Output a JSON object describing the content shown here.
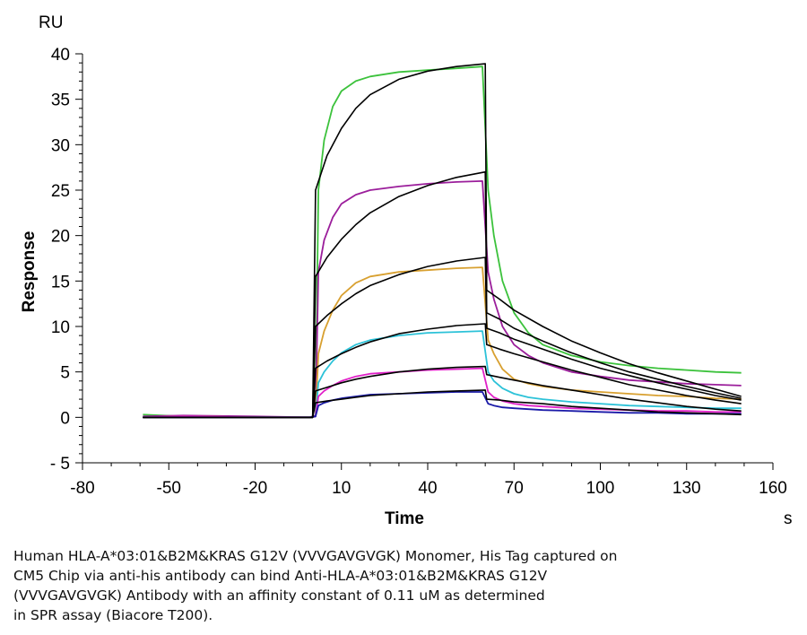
{
  "chart_data": {
    "type": "line",
    "y_unit": "RU",
    "x_unit": "s",
    "xlabel": "Time",
    "ylabel": "Response",
    "xlim": [
      -80,
      160
    ],
    "ylim": [
      -5,
      40
    ],
    "x_ticks": [
      -80,
      -50,
      -20,
      10,
      40,
      70,
      100,
      130,
      160
    ],
    "y_ticks": [
      -5,
      0,
      5,
      10,
      15,
      20,
      25,
      30,
      35,
      40
    ],
    "grid": false,
    "series": [
      {
        "color": "#3cc23c",
        "points": [
          [
            -59,
            0.3
          ],
          [
            -45,
            0.1
          ],
          [
            -20,
            0.0
          ],
          [
            -1,
            0.0
          ],
          [
            1,
            0.2
          ],
          [
            2,
            25.0
          ],
          [
            4,
            30.5
          ],
          [
            7,
            34.2
          ],
          [
            10,
            35.9
          ],
          [
            15,
            37.0
          ],
          [
            20,
            37.5
          ],
          [
            30,
            38.0
          ],
          [
            40,
            38.2
          ],
          [
            50,
            38.4
          ],
          [
            59,
            38.6
          ],
          [
            61,
            25.0
          ],
          [
            63,
            20.0
          ],
          [
            66,
            15.0
          ],
          [
            70,
            11.5
          ],
          [
            75,
            9.3
          ],
          [
            80,
            8.0
          ],
          [
            90,
            6.8
          ],
          [
            100,
            6.1
          ],
          [
            110,
            5.7
          ],
          [
            120,
            5.4
          ],
          [
            130,
            5.2
          ],
          [
            140,
            5.0
          ],
          [
            149,
            4.9
          ]
        ]
      },
      {
        "color": "#9b1e9b",
        "points": [
          [
            -59,
            0.1
          ],
          [
            -45,
            0.2
          ],
          [
            -20,
            0.1
          ],
          [
            -1,
            0.0
          ],
          [
            1,
            0.2
          ],
          [
            2,
            16.0
          ],
          [
            4,
            19.5
          ],
          [
            7,
            22.0
          ],
          [
            10,
            23.5
          ],
          [
            15,
            24.5
          ],
          [
            20,
            25.0
          ],
          [
            30,
            25.4
          ],
          [
            40,
            25.7
          ],
          [
            50,
            25.9
          ],
          [
            59,
            26.0
          ],
          [
            61,
            16.0
          ],
          [
            63,
            13.0
          ],
          [
            66,
            10.0
          ],
          [
            70,
            8.0
          ],
          [
            75,
            6.8
          ],
          [
            80,
            6.0
          ],
          [
            90,
            5.0
          ],
          [
            100,
            4.5
          ],
          [
            110,
            4.1
          ],
          [
            120,
            3.9
          ],
          [
            130,
            3.7
          ],
          [
            140,
            3.6
          ],
          [
            149,
            3.5
          ]
        ]
      },
      {
        "color": "#d8a030",
        "points": [
          [
            -59,
            0.0
          ],
          [
            -45,
            0.1
          ],
          [
            -20,
            0.0
          ],
          [
            -1,
            0.0
          ],
          [
            1,
            0.1
          ],
          [
            2,
            7.0
          ],
          [
            4,
            9.5
          ],
          [
            7,
            11.8
          ],
          [
            10,
            13.4
          ],
          [
            15,
            14.8
          ],
          [
            20,
            15.5
          ],
          [
            30,
            16.0
          ],
          [
            40,
            16.2
          ],
          [
            50,
            16.4
          ],
          [
            59,
            16.5
          ],
          [
            61,
            8.5
          ],
          [
            63,
            7.0
          ],
          [
            66,
            5.3
          ],
          [
            70,
            4.2
          ],
          [
            75,
            3.7
          ],
          [
            80,
            3.4
          ],
          [
            90,
            3.0
          ],
          [
            100,
            2.8
          ],
          [
            110,
            2.6
          ],
          [
            120,
            2.4
          ],
          [
            130,
            2.3
          ],
          [
            140,
            2.1
          ],
          [
            149,
            2.0
          ]
        ]
      },
      {
        "color": "#2cc2d8",
        "points": [
          [
            -59,
            0.0
          ],
          [
            -45,
            0.0
          ],
          [
            -20,
            0.0
          ],
          [
            -1,
            0.0
          ],
          [
            1,
            0.1
          ],
          [
            2,
            3.8
          ],
          [
            4,
            5.0
          ],
          [
            7,
            6.2
          ],
          [
            10,
            7.1
          ],
          [
            15,
            8.0
          ],
          [
            20,
            8.5
          ],
          [
            30,
            9.0
          ],
          [
            40,
            9.3
          ],
          [
            50,
            9.4
          ],
          [
            59,
            9.5
          ],
          [
            61,
            5.0
          ],
          [
            63,
            4.0
          ],
          [
            66,
            3.2
          ],
          [
            70,
            2.6
          ],
          [
            75,
            2.2
          ],
          [
            80,
            2.0
          ],
          [
            90,
            1.7
          ],
          [
            100,
            1.5
          ],
          [
            110,
            1.3
          ],
          [
            120,
            1.2
          ],
          [
            130,
            1.1
          ],
          [
            140,
            1.0
          ],
          [
            149,
            1.0
          ]
        ]
      },
      {
        "color": "#e020c8",
        "points": [
          [
            -59,
            0.0
          ],
          [
            -45,
            0.1
          ],
          [
            -20,
            0.0
          ],
          [
            -1,
            0.0
          ],
          [
            1,
            0.1
          ],
          [
            2,
            2.3
          ],
          [
            4,
            2.9
          ],
          [
            7,
            3.5
          ],
          [
            10,
            4.0
          ],
          [
            15,
            4.5
          ],
          [
            20,
            4.8
          ],
          [
            30,
            5.0
          ],
          [
            40,
            5.2
          ],
          [
            50,
            5.3
          ],
          [
            59,
            5.4
          ],
          [
            61,
            2.8
          ],
          [
            63,
            2.2
          ],
          [
            66,
            1.8
          ],
          [
            70,
            1.5
          ],
          [
            75,
            1.3
          ],
          [
            80,
            1.2
          ],
          [
            90,
            1.0
          ],
          [
            100,
            0.9
          ],
          [
            110,
            0.8
          ],
          [
            120,
            0.7
          ],
          [
            130,
            0.7
          ],
          [
            140,
            0.6
          ],
          [
            149,
            0.6
          ]
        ]
      },
      {
        "color": "#1a1aa8",
        "points": [
          [
            -59,
            0.0
          ],
          [
            -45,
            0.0
          ],
          [
            -20,
            0.0
          ],
          [
            -1,
            0.0
          ],
          [
            1,
            0.1
          ],
          [
            2,
            1.3
          ],
          [
            4,
            1.6
          ],
          [
            7,
            1.9
          ],
          [
            10,
            2.1
          ],
          [
            15,
            2.3
          ],
          [
            20,
            2.5
          ],
          [
            30,
            2.6
          ],
          [
            40,
            2.7
          ],
          [
            50,
            2.8
          ],
          [
            59,
            2.8
          ],
          [
            61,
            1.5
          ],
          [
            63,
            1.3
          ],
          [
            66,
            1.1
          ],
          [
            70,
            1.0
          ],
          [
            75,
            0.9
          ],
          [
            80,
            0.8
          ],
          [
            90,
            0.7
          ],
          [
            100,
            0.6
          ],
          [
            110,
            0.5
          ],
          [
            120,
            0.5
          ],
          [
            130,
            0.4
          ],
          [
            140,
            0.4
          ],
          [
            149,
            0.4
          ]
        ]
      },
      {
        "color": "#000000",
        "points": [
          [
            -59,
            0.0
          ],
          [
            -1,
            0.0
          ],
          [
            0,
            0.0
          ],
          [
            1,
            25.0
          ],
          [
            5,
            28.8
          ],
          [
            10,
            31.8
          ],
          [
            15,
            34.0
          ],
          [
            20,
            35.5
          ],
          [
            30,
            37.2
          ],
          [
            40,
            38.1
          ],
          [
            50,
            38.6
          ],
          [
            60,
            38.9
          ],
          [
            60.5,
            14.0
          ],
          [
            65,
            13.0
          ],
          [
            70,
            11.8
          ],
          [
            80,
            10.0
          ],
          [
            90,
            8.4
          ],
          [
            100,
            7.1
          ],
          [
            110,
            5.9
          ],
          [
            120,
            4.9
          ],
          [
            130,
            4.0
          ],
          [
            140,
            3.1
          ],
          [
            149,
            2.3
          ]
        ]
      },
      {
        "color": "#000000",
        "points": [
          [
            -59,
            0.0
          ],
          [
            -1,
            0.0
          ],
          [
            0,
            0.0
          ],
          [
            1,
            15.5
          ],
          [
            5,
            17.6
          ],
          [
            10,
            19.6
          ],
          [
            15,
            21.2
          ],
          [
            20,
            22.5
          ],
          [
            30,
            24.3
          ],
          [
            40,
            25.5
          ],
          [
            50,
            26.4
          ],
          [
            60,
            27.0
          ],
          [
            60.5,
            11.5
          ],
          [
            65,
            10.8
          ],
          [
            70,
            9.8
          ],
          [
            80,
            8.4
          ],
          [
            90,
            7.1
          ],
          [
            100,
            6.0
          ],
          [
            110,
            5.0
          ],
          [
            120,
            4.2
          ],
          [
            130,
            3.4
          ],
          [
            140,
            2.7
          ],
          [
            149,
            2.1
          ]
        ]
      },
      {
        "color": "#000000",
        "points": [
          [
            -59,
            0.0
          ],
          [
            -1,
            0.0
          ],
          [
            0,
            0.0
          ],
          [
            1,
            10.0
          ],
          [
            5,
            11.2
          ],
          [
            10,
            12.5
          ],
          [
            15,
            13.6
          ],
          [
            20,
            14.5
          ],
          [
            30,
            15.7
          ],
          [
            40,
            16.6
          ],
          [
            50,
            17.2
          ],
          [
            60,
            17.6
          ],
          [
            60.5,
            9.8
          ],
          [
            65,
            9.3
          ],
          [
            70,
            8.6
          ],
          [
            80,
            7.5
          ],
          [
            90,
            6.4
          ],
          [
            100,
            5.4
          ],
          [
            110,
            4.6
          ],
          [
            120,
            3.8
          ],
          [
            130,
            3.1
          ],
          [
            140,
            2.4
          ],
          [
            149,
            1.9
          ]
        ]
      },
      {
        "color": "#000000",
        "points": [
          [
            -59,
            0.0
          ],
          [
            -1,
            0.0
          ],
          [
            0,
            0.0
          ],
          [
            1,
            5.4
          ],
          [
            5,
            6.2
          ],
          [
            10,
            7.0
          ],
          [
            15,
            7.7
          ],
          [
            20,
            8.3
          ],
          [
            30,
            9.2
          ],
          [
            40,
            9.7
          ],
          [
            50,
            10.1
          ],
          [
            60,
            10.3
          ],
          [
            60.5,
            8.0
          ],
          [
            65,
            7.5
          ],
          [
            70,
            7.0
          ],
          [
            80,
            6.1
          ],
          [
            90,
            5.2
          ],
          [
            100,
            4.4
          ],
          [
            110,
            3.6
          ],
          [
            120,
            3.0
          ],
          [
            130,
            2.4
          ],
          [
            140,
            1.9
          ],
          [
            149,
            1.5
          ]
        ]
      },
      {
        "color": "#000000",
        "points": [
          [
            -59,
            0.0
          ],
          [
            -1,
            0.0
          ],
          [
            0,
            0.0
          ],
          [
            1,
            2.9
          ],
          [
            5,
            3.3
          ],
          [
            10,
            3.8
          ],
          [
            15,
            4.2
          ],
          [
            20,
            4.5
          ],
          [
            30,
            5.0
          ],
          [
            40,
            5.3
          ],
          [
            50,
            5.5
          ],
          [
            60,
            5.6
          ],
          [
            60.5,
            4.7
          ],
          [
            65,
            4.4
          ],
          [
            70,
            4.1
          ],
          [
            80,
            3.5
          ],
          [
            90,
            3.0
          ],
          [
            100,
            2.5
          ],
          [
            110,
            2.0
          ],
          [
            120,
            1.6
          ],
          [
            130,
            1.2
          ],
          [
            140,
            0.9
          ],
          [
            149,
            0.7
          ]
        ]
      },
      {
        "color": "#000000",
        "points": [
          [
            -59,
            0.0
          ],
          [
            -1,
            0.0
          ],
          [
            0,
            0.0
          ],
          [
            1,
            1.6
          ],
          [
            5,
            1.8
          ],
          [
            10,
            2.0
          ],
          [
            15,
            2.2
          ],
          [
            20,
            2.4
          ],
          [
            30,
            2.6
          ],
          [
            40,
            2.8
          ],
          [
            50,
            2.9
          ],
          [
            60,
            3.0
          ],
          [
            60.5,
            2.0
          ],
          [
            65,
            1.9
          ],
          [
            70,
            1.7
          ],
          [
            80,
            1.5
          ],
          [
            90,
            1.2
          ],
          [
            100,
            1.0
          ],
          [
            110,
            0.8
          ],
          [
            120,
            0.6
          ],
          [
            130,
            0.5
          ],
          [
            140,
            0.4
          ],
          [
            149,
            0.3
          ]
        ]
      }
    ]
  },
  "caption": {
    "line1": "Human HLA-A*03:01&B2M&KRAS G12V (VVVGAVGVGK) Monomer, His Tag captured on",
    "line2": "CM5 Chip via anti-his antibody can bind Anti-HLA-A*03:01&B2M&KRAS G12V",
    "line3": "(VVVGAVGVGK) Antibody with an affinity constant of 0.11 uM as determined",
    "line4": "in SPR assay (Biacore T200)."
  }
}
